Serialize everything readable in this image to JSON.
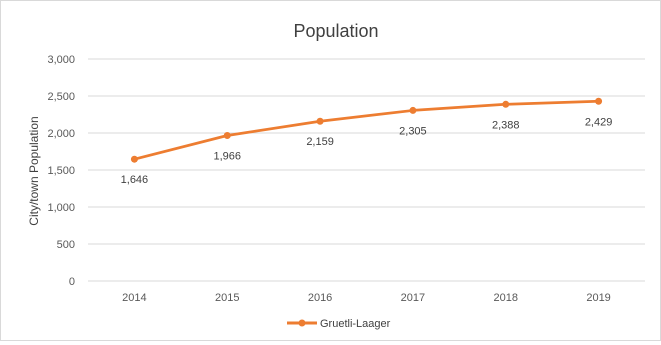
{
  "chart_data": {
    "type": "line",
    "title": "Population",
    "xlabel": "",
    "ylabel": "City/town Population",
    "categories": [
      "2014",
      "2015",
      "2016",
      "2017",
      "2018",
      "2019"
    ],
    "series": [
      {
        "name": "Gruetli-Laager",
        "values": [
          1646,
          1966,
          2159,
          2305,
          2388,
          2429
        ],
        "labels": [
          "1,646",
          "1,966",
          "2,159",
          "2,305",
          "2,388",
          "2,429"
        ]
      }
    ],
    "ylim": [
      0,
      3000
    ],
    "yticks": [
      0,
      500,
      1000,
      1500,
      2000,
      2500,
      3000
    ],
    "ytick_labels": [
      "0",
      "500",
      "1,000",
      "1,500",
      "2,000",
      "2,500",
      "3,000"
    ],
    "grid": true,
    "legend_position": "bottom",
    "colors": {
      "series": "#ED7D31",
      "grid": "#d9d9d9"
    }
  }
}
